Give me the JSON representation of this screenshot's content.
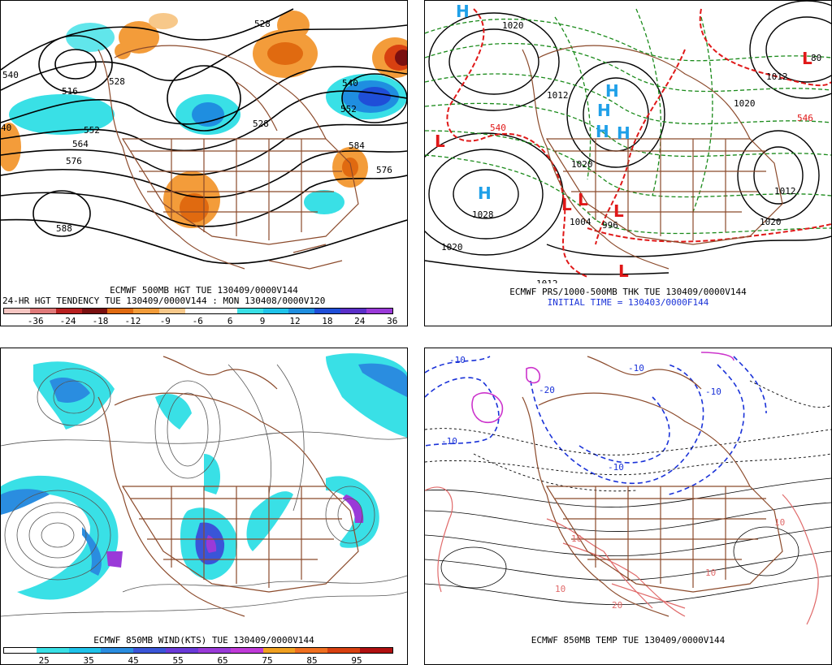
{
  "panels": {
    "tl": {
      "caption1": "ECMWF 500MB HGT TUE 130409/0000V144",
      "caption2": "24-HR HGT TENDENCY TUE 130409/0000V144 : MON 130408/0000V120",
      "contour_labels": [
        "540",
        "516",
        "528",
        "528",
        "552",
        "564",
        "576",
        "588",
        "40",
        "528",
        "540",
        "552",
        "584",
        "576"
      ],
      "colorbar": {
        "colors": [
          "#f6c6c2",
          "#e07a7a",
          "#b82020",
          "#7a1010",
          "#e06a10",
          "#f39c3a",
          "#f7c88a",
          "#ffffff",
          "#ffffff",
          "#39e0e6",
          "#1fc3ea",
          "#1f8ee0",
          "#1f4ed8",
          "#5a2fc8",
          "#9a3ad8"
        ],
        "ticks": [
          "-36",
          "-24",
          "-18",
          "-12",
          "-9",
          "-6",
          "6",
          "9",
          "12",
          "18",
          "24",
          "36"
        ]
      }
    },
    "tr": {
      "caption1": "ECMWF PRS/1000-500MB THK TUE 130409/0000V144",
      "caption2": "INITIAL TIME = 130403/0000F144",
      "pressure_labels": [
        "1020",
        "1028",
        "1020",
        "1012",
        "1020",
        "1012",
        "1020",
        "1012",
        "1020",
        "1004",
        "996",
        "1012",
        "540",
        "546",
        "80"
      ],
      "centers": [
        "H",
        "H",
        "H",
        "H",
        "H",
        "H",
        "L",
        "L",
        "L",
        "L",
        "L",
        "L"
      ]
    },
    "bl": {
      "caption1": "ECMWF 850MB WIND(KTS) TUE 130409/0000V144",
      "colorbar": {
        "colors": [
          "#ffffff",
          "#39e0e6",
          "#1fc3ea",
          "#2a8de0",
          "#3a55d8",
          "#6a3ad8",
          "#9a3ad8",
          "#c03ad8",
          "#f0a020",
          "#f07020",
          "#d84010",
          "#b01010"
        ],
        "ticks": [
          "25",
          "35",
          "45",
          "55",
          "65",
          "75",
          "85",
          "95"
        ]
      }
    },
    "br": {
      "caption1": "ECMWF 850MB TEMP TUE 130409/0000V144",
      "temp_labels": [
        "-10",
        "-20",
        "-10",
        "-10",
        "-10",
        "-10",
        "10",
        "10",
        "10",
        "10",
        "20"
      ]
    }
  }
}
